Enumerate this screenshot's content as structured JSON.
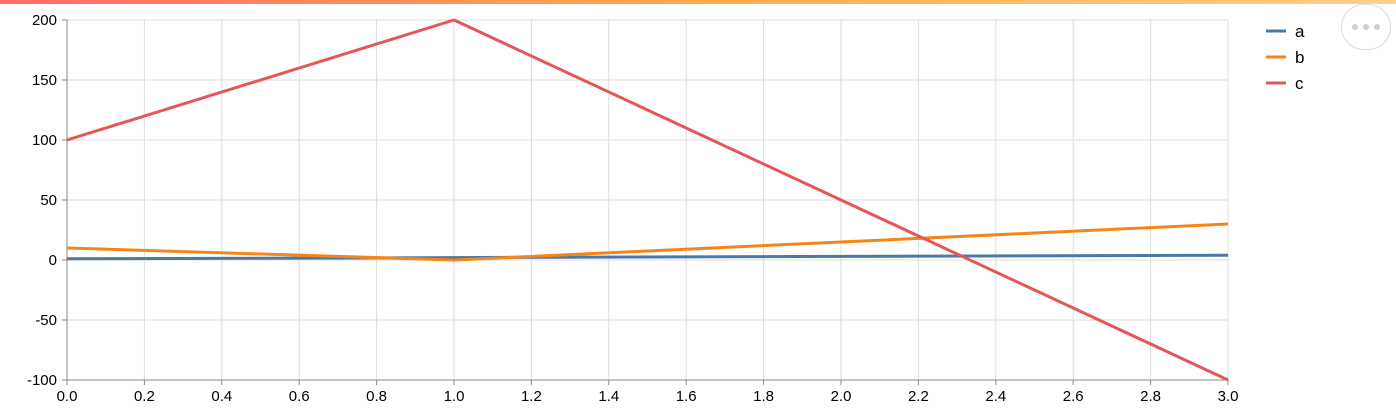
{
  "theme": {
    "top_bar_gradient": [
      "#ff6b6b",
      "#ffa94d",
      "#ffd18a"
    ],
    "grid_color": "#dddddd",
    "axis_color": "#888888",
    "text_color": "#000000"
  },
  "toolbar": {
    "menu_icon": "ellipsis-icon"
  },
  "chart_data": {
    "type": "line",
    "title": "",
    "xlabel": "",
    "ylabel": "",
    "x": [
      0,
      1,
      2,
      3
    ],
    "xlim": [
      0,
      3
    ],
    "ylim": [
      -100,
      200
    ],
    "x_ticks": [
      "0.0",
      "0.2",
      "0.4",
      "0.6",
      "0.8",
      "1.0",
      "1.2",
      "1.4",
      "1.6",
      "1.8",
      "2.0",
      "2.2",
      "2.4",
      "2.6",
      "2.8",
      "3.0"
    ],
    "y_ticks": [
      "-100",
      "-50",
      "0",
      "50",
      "100",
      "150",
      "200"
    ],
    "grid": true,
    "legend": "right",
    "series": [
      {
        "name": "a",
        "color": "#4c78a8",
        "values": [
          1,
          2,
          3,
          4
        ]
      },
      {
        "name": "b",
        "color": "#f58518",
        "values": [
          10,
          0,
          15,
          30
        ]
      },
      {
        "name": "c",
        "color": "#e45756",
        "values": [
          100,
          200,
          50,
          -100
        ]
      }
    ]
  }
}
